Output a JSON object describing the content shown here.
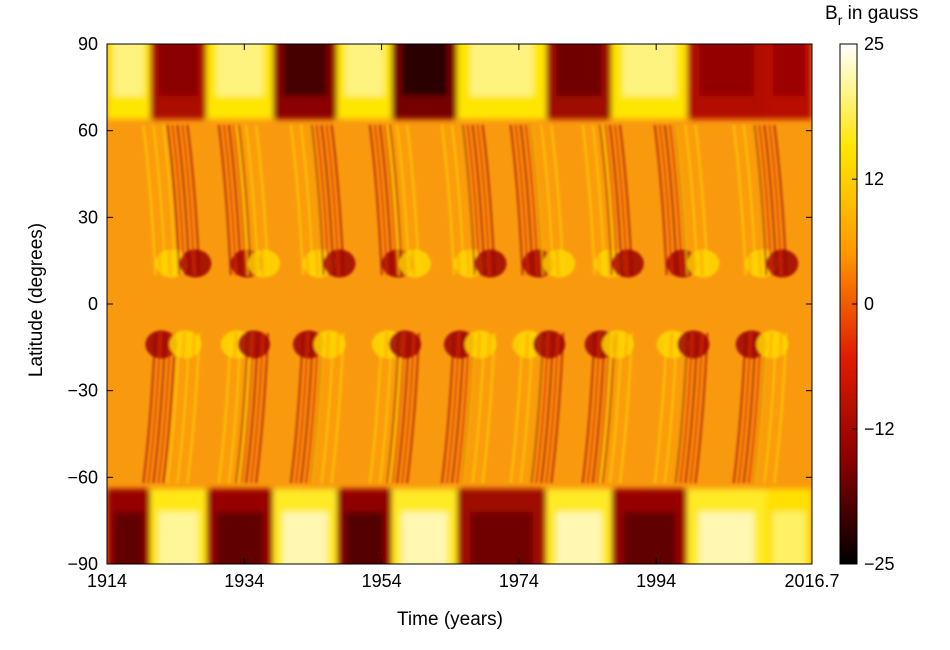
{
  "chart_data": {
    "type": "heatmap",
    "title": "",
    "xlabel": "Time (years)",
    "ylabel": "Latitude (degrees)",
    "xlim": [
      1914,
      2016.7
    ],
    "ylim": [
      -90,
      90
    ],
    "x_ticks": [
      1914,
      1934,
      1954,
      1974,
      1994,
      2016.7
    ],
    "x_tick_labels": [
      "1914",
      "1934",
      "1954",
      "1974",
      "1994",
      "2016.7"
    ],
    "y_ticks": [
      90,
      60,
      30,
      0,
      -30,
      -60,
      -90
    ],
    "y_tick_labels": [
      "90",
      "60",
      "30",
      "0",
      "−30",
      "−60",
      "−90"
    ],
    "colorbar": {
      "label_main": "B",
      "label_sub": "r",
      "label_rest": " in gauss",
      "range": [
        -25,
        25
      ],
      "ticks": [
        25,
        12,
        0,
        -12,
        -25
      ],
      "tick_labels": [
        "25",
        "12",
        "0",
        "−12",
        "−25"
      ],
      "colormap": [
        "#000000",
        "#8b0000",
        "#e11d00",
        "#ff9900",
        "#ffe600",
        "#ffffff"
      ]
    },
    "grid": false,
    "polar_bands": [
      {
        "start": 1914.0,
        "end": 1920.3,
        "north": 20,
        "south": -18
      },
      {
        "start": 1920.3,
        "end": 1928.5,
        "north": -15,
        "south": 21
      },
      {
        "start": 1928.5,
        "end": 1938.2,
        "north": 20,
        "south": -18
      },
      {
        "start": 1938.2,
        "end": 1947.5,
        "north": -20,
        "south": 22
      },
      {
        "start": 1947.5,
        "end": 1955.5,
        "north": 20,
        "south": -19
      },
      {
        "start": 1955.5,
        "end": 1965.0,
        "north": -22,
        "south": 22
      },
      {
        "start": 1965.0,
        "end": 1978.0,
        "north": 20,
        "south": -17
      },
      {
        "start": 1978.0,
        "end": 1987.5,
        "north": -17,
        "south": 22
      },
      {
        "start": 1987.5,
        "end": 1998.5,
        "north": 20,
        "south": -18
      },
      {
        "start": 1998.5,
        "end": 2010.0,
        "north": -14,
        "south": 22
      },
      {
        "start": 2010.0,
        "end": 2016.7,
        "north": -13,
        "south": 19
      }
    ],
    "streams": [
      {
        "year": 1922.5,
        "sign": 1
      },
      {
        "year": 1926.0,
        "sign": -1
      },
      {
        "year": 1933.5,
        "sign": -1
      },
      {
        "year": 1936.0,
        "sign": 1
      },
      {
        "year": 1944.0,
        "sign": 1
      },
      {
        "year": 1947.0,
        "sign": -1
      },
      {
        "year": 1955.5,
        "sign": -1
      },
      {
        "year": 1958.0,
        "sign": 1
      },
      {
        "year": 1966.0,
        "sign": 1
      },
      {
        "year": 1969.0,
        "sign": -1
      },
      {
        "year": 1976.0,
        "sign": -1
      },
      {
        "year": 1979.0,
        "sign": 1
      },
      {
        "year": 1986.5,
        "sign": 1
      },
      {
        "year": 1989.0,
        "sign": -1
      },
      {
        "year": 1997.0,
        "sign": -1
      },
      {
        "year": 2000.0,
        "sign": 1
      },
      {
        "year": 2008.5,
        "sign": 1
      },
      {
        "year": 2011.5,
        "sign": -1
      }
    ]
  }
}
